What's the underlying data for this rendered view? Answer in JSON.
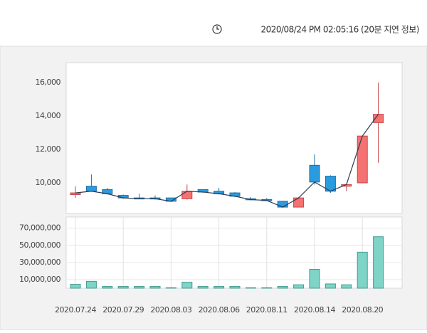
{
  "timestamp": "2020/08/24 PM 02:05:16 (20분 지연 정보)",
  "chart_data": [
    {
      "type": "candlestick",
      "categories": [
        "2020.07.24",
        null,
        null,
        "2020.07.29",
        null,
        null,
        "2020.08.03",
        null,
        null,
        "2020.08.06",
        null,
        null,
        "2020.08.11",
        null,
        null,
        "2020.08.14",
        null,
        null,
        "2020.08.20",
        null
      ],
      "open": [
        9300,
        9800,
        9600,
        9250,
        9100,
        9100,
        9100,
        9050,
        9600,
        9500,
        9400,
        9050,
        9000,
        8900,
        8550,
        11050,
        10400,
        9800,
        10000,
        13600
      ],
      "high": [
        9800,
        10500,
        9700,
        9300,
        9350,
        9250,
        9100,
        9900,
        9600,
        9700,
        9450,
        9150,
        9100,
        8900,
        9150,
        11700,
        10450,
        9900,
        12800,
        16000
      ],
      "low": [
        9100,
        9500,
        9300,
        9050,
        9050,
        9000,
        8850,
        9000,
        9400,
        9300,
        9150,
        8950,
        8900,
        8500,
        8550,
        9900,
        9400,
        9500,
        10000,
        11200
      ],
      "close": [
        9400,
        9500,
        9350,
        9100,
        9050,
        9050,
        8900,
        9500,
        9450,
        9350,
        9200,
        9000,
        8950,
        8550,
        9100,
        10050,
        9500,
        9900,
        12800,
        14100
      ],
      "up_color": "#f47272",
      "down_color": "#2b9be0",
      "line_color": "#2f3b55",
      "ylim": [
        8170,
        17190
      ],
      "yticks": [
        {
          "value": 10000,
          "label": "10,000"
        },
        {
          "value": 12000,
          "label": "12,000"
        },
        {
          "value": 14000,
          "label": "14,000"
        },
        {
          "value": 16000,
          "label": "16,000"
        }
      ]
    },
    {
      "type": "bar",
      "values": [
        4500000,
        8000000,
        2000000,
        2000000,
        2000000,
        2000000,
        500000,
        7000000,
        2000000,
        2000000,
        2000000,
        500000,
        500000,
        2000000,
        4000000,
        22000000,
        5000000,
        4000000,
        42000000,
        60000000
      ],
      "color": "#7fd4c8",
      "ylim": [
        0,
        83000000
      ],
      "yticks": [
        {
          "value": 10000000,
          "label": "10,000,000"
        },
        {
          "value": 30000000,
          "label": "30,000,000"
        },
        {
          "value": 50000000,
          "label": "50,000,000"
        },
        {
          "value": 70000000,
          "label": "70,000,000"
        }
      ],
      "grid": true
    }
  ]
}
